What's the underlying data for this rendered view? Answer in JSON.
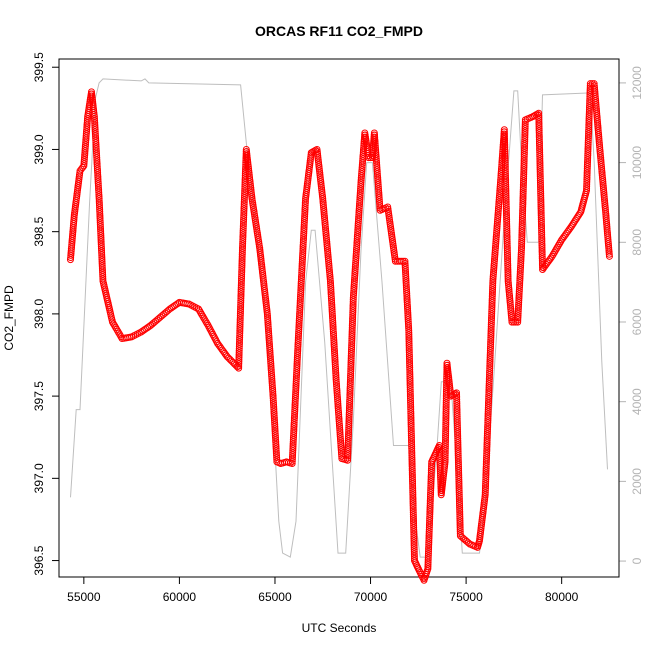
{
  "chart_data": {
    "type": "scatter",
    "title": "ORCAS RF11 CO2_FMPD",
    "xlabel": "UTC Seconds",
    "ylabel": "CO2_FMPD",
    "xlim": [
      53700,
      83000
    ],
    "ylim": [
      396.4,
      399.55
    ],
    "y2lim": [
      -400,
      12600
    ],
    "x_ticks": [
      55000,
      60000,
      65000,
      70000,
      75000,
      80000
    ],
    "x_tick_labels": [
      "55000",
      "60000",
      "65000",
      "70000",
      "75000",
      "80000"
    ],
    "y_ticks": [
      396.5,
      397.0,
      397.5,
      398.0,
      398.5,
      399.0,
      399.5
    ],
    "y_tick_labels": [
      "396.5",
      "397.0",
      "397.5",
      "398.0",
      "398.5",
      "399.0",
      "399.5"
    ],
    "y2_ticks": [
      0,
      2000,
      4000,
      6000,
      8000,
      10000,
      12000
    ],
    "y2_tick_labels": [
      "0",
      "2000",
      "4000",
      "6000",
      "8000",
      "10000",
      "12000"
    ],
    "colors": {
      "co2": "#ff0000",
      "altitude": "#bebebe",
      "axis": "#000000",
      "axis2": "#b3b3b3"
    },
    "series": [
      {
        "name": "CO2_FMPD",
        "axis": "left",
        "style": "points",
        "keyframes": [
          [
            54300,
            398.33
          ],
          [
            54500,
            398.6
          ],
          [
            54800,
            398.87
          ],
          [
            55000,
            398.9
          ],
          [
            55200,
            399.2
          ],
          [
            55400,
            399.35
          ],
          [
            55550,
            399.2
          ],
          [
            55800,
            398.7
          ],
          [
            56000,
            398.2
          ],
          [
            56500,
            397.95
          ],
          [
            57000,
            397.85
          ],
          [
            57500,
            397.86
          ],
          [
            58000,
            397.89
          ],
          [
            58500,
            397.93
          ],
          [
            59000,
            397.98
          ],
          [
            59500,
            398.03
          ],
          [
            60000,
            398.07
          ],
          [
            60500,
            398.06
          ],
          [
            61000,
            398.03
          ],
          [
            61500,
            397.93
          ],
          [
            62000,
            397.82
          ],
          [
            62500,
            397.74
          ],
          [
            63100,
            397.67
          ],
          [
            63300,
            398.4
          ],
          [
            63500,
            399.0
          ],
          [
            63800,
            398.7
          ],
          [
            64200,
            398.4
          ],
          [
            64600,
            398.0
          ],
          [
            64900,
            397.5
          ],
          [
            65100,
            397.1
          ],
          [
            65300,
            397.09
          ],
          [
            65600,
            397.1
          ],
          [
            65900,
            397.09
          ],
          [
            66200,
            397.8
          ],
          [
            66600,
            398.7
          ],
          [
            66900,
            398.98
          ],
          [
            67200,
            399.0
          ],
          [
            67500,
            398.7
          ],
          [
            67900,
            398.2
          ],
          [
            68200,
            397.6
          ],
          [
            68500,
            397.12
          ],
          [
            68800,
            397.11
          ],
          [
            69100,
            398.1
          ],
          [
            69500,
            398.8
          ],
          [
            69700,
            399.1
          ],
          [
            69900,
            398.95
          ],
          [
            70100,
            398.95
          ],
          [
            70200,
            399.1
          ],
          [
            70500,
            398.63
          ],
          [
            70900,
            398.65
          ],
          [
            71300,
            398.32
          ],
          [
            71800,
            398.32
          ],
          [
            72000,
            397.9
          ],
          [
            72300,
            396.5
          ],
          [
            72500,
            396.45
          ],
          [
            72800,
            396.38
          ],
          [
            73000,
            396.45
          ],
          [
            73200,
            397.1
          ],
          [
            73400,
            397.15
          ],
          [
            73600,
            397.2
          ],
          [
            73700,
            396.9
          ],
          [
            73900,
            397.1
          ],
          [
            74000,
            397.7
          ],
          [
            74200,
            397.5
          ],
          [
            74500,
            397.52
          ],
          [
            74700,
            396.65
          ],
          [
            75200,
            396.6
          ],
          [
            75600,
            396.58
          ],
          [
            75700,
            396.62
          ],
          [
            76000,
            396.9
          ],
          [
            76400,
            398.2
          ],
          [
            76800,
            398.8
          ],
          [
            77000,
            399.12
          ],
          [
            77200,
            398.2
          ],
          [
            77400,
            397.95
          ],
          [
            77700,
            397.95
          ],
          [
            77900,
            398.4
          ],
          [
            78100,
            399.18
          ],
          [
            78500,
            399.2
          ],
          [
            78800,
            399.22
          ],
          [
            79000,
            398.27
          ],
          [
            79500,
            398.35
          ],
          [
            80000,
            398.45
          ],
          [
            80500,
            398.53
          ],
          [
            81000,
            398.62
          ],
          [
            81300,
            398.75
          ],
          [
            81500,
            399.4
          ],
          [
            81700,
            399.4
          ],
          [
            82000,
            399.0
          ],
          [
            82300,
            398.62
          ],
          [
            82500,
            398.35
          ]
        ]
      },
      {
        "name": "Altitude",
        "axis": "right",
        "style": "line",
        "points": [
          [
            54300,
            1600
          ],
          [
            54600,
            3800
          ],
          [
            54800,
            3800
          ],
          [
            55300,
            9000
          ],
          [
            55600,
            11600
          ],
          [
            55800,
            12000
          ],
          [
            56000,
            12100
          ],
          [
            58000,
            12050
          ],
          [
            58200,
            12100
          ],
          [
            58400,
            12000
          ],
          [
            63200,
            11950
          ],
          [
            63500,
            10500
          ],
          [
            63900,
            8800
          ],
          [
            64300,
            7000
          ],
          [
            64800,
            4500
          ],
          [
            65200,
            1000
          ],
          [
            65400,
            200
          ],
          [
            65800,
            100
          ],
          [
            66100,
            1000
          ],
          [
            66600,
            7000
          ],
          [
            66900,
            8300
          ],
          [
            67100,
            8300
          ],
          [
            67600,
            5500
          ],
          [
            68300,
            200
          ],
          [
            68700,
            200
          ],
          [
            69100,
            3500
          ],
          [
            69500,
            7800
          ],
          [
            69800,
            10000
          ],
          [
            70100,
            10000
          ],
          [
            70600,
            7000
          ],
          [
            71200,
            2900
          ],
          [
            72000,
            2900
          ],
          [
            72300,
            1200
          ],
          [
            72600,
            100
          ],
          [
            73000,
            100
          ],
          [
            73500,
            3000
          ],
          [
            73700,
            4500
          ],
          [
            74200,
            4500
          ],
          [
            74500,
            2500
          ],
          [
            74800,
            200
          ],
          [
            75700,
            200
          ],
          [
            76000,
            1500
          ],
          [
            76500,
            5000
          ],
          [
            77000,
            8600
          ],
          [
            77500,
            11800
          ],
          [
            77700,
            11800
          ],
          [
            77900,
            10000
          ],
          [
            78200,
            8000
          ],
          [
            78800,
            8000
          ],
          [
            79000,
            11700
          ],
          [
            81500,
            11750
          ],
          [
            81700,
            10000
          ],
          [
            82100,
            5000
          ],
          [
            82400,
            2300
          ]
        ]
      }
    ]
  }
}
